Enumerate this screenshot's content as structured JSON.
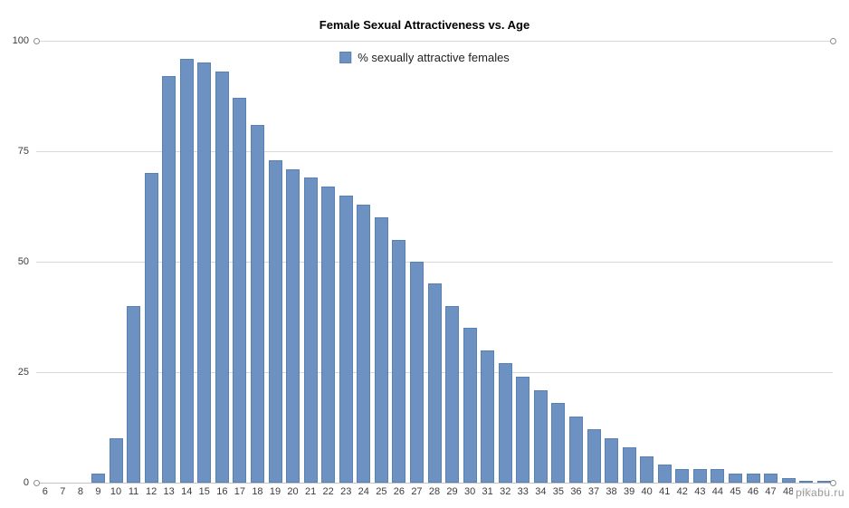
{
  "title": "Female Sexual Attractiveness vs. Age",
  "legend": {
    "label": "% sexually attractive females"
  },
  "watermark": "pikabu.ru",
  "colors": {
    "bar_fill": "#6d91c1",
    "bar_border": "#5a81b4",
    "grid": "#d8d8d8"
  },
  "chart_data": {
    "type": "bar",
    "title": "Female Sexual Attractiveness vs. Age",
    "xlabel": "",
    "ylabel": "",
    "ylim": [
      0,
      100
    ],
    "yticks": [
      0,
      25,
      50,
      75,
      100
    ],
    "grid": true,
    "legend_position": "top-center",
    "legend_entries": [
      "% sexually attractive females"
    ],
    "categories": [
      6,
      7,
      8,
      9,
      10,
      11,
      12,
      13,
      14,
      15,
      16,
      17,
      18,
      19,
      20,
      21,
      22,
      23,
      24,
      25,
      26,
      27,
      28,
      29,
      30,
      31,
      32,
      33,
      34,
      35,
      36,
      37,
      38,
      39,
      40,
      41,
      42,
      43,
      44,
      45,
      46,
      47,
      48,
      49,
      50
    ],
    "values": [
      0,
      0,
      0,
      2,
      10,
      40,
      70,
      92,
      96,
      95,
      93,
      87,
      81,
      73,
      71,
      69,
      67,
      65,
      63,
      60,
      55,
      50,
      45,
      40,
      35,
      30,
      27,
      24,
      21,
      18,
      15,
      12,
      10,
      8,
      6,
      4,
      3,
      3,
      3,
      2,
      2,
      2,
      1,
      0.5,
      0.5
    ]
  }
}
